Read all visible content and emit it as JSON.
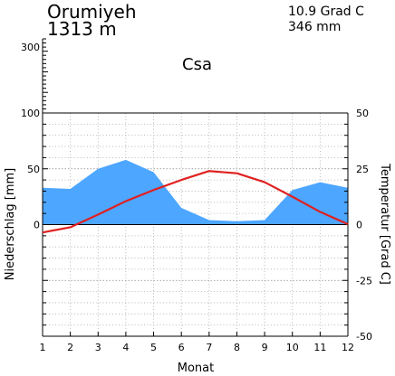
{
  "header": {
    "station": "Orumiyeh",
    "elevation": "1313 m",
    "mean_temperature": "10.9 Grad C",
    "annual_precipitation": "346 mm",
    "climate_class": "Csa"
  },
  "chart_data": {
    "type": "area",
    "title": "",
    "xlabel": "Monat",
    "ylabel_left": "Niederschlag [mm]",
    "ylabel_right": "Temperatur [Grad C]",
    "categories": [
      "1",
      "2",
      "3",
      "4",
      "5",
      "6",
      "7",
      "8",
      "9",
      "10",
      "11",
      "12"
    ],
    "left_ticks": [
      "0",
      "50",
      "100",
      "300"
    ],
    "right_ticks": [
      "50",
      "25",
      "0",
      "-25",
      "-50"
    ],
    "xlim": [
      1,
      12
    ],
    "left_ylim": [
      -100,
      100
    ],
    "right_ylim": [
      -50,
      50
    ],
    "grid": true,
    "series": [
      {
        "kind": "precipitation",
        "unit": "mm",
        "color": "#4da6ff",
        "values": [
          33,
          32,
          50,
          58,
          47,
          15,
          4,
          3,
          4,
          31,
          38,
          33
        ]
      },
      {
        "kind": "temperature",
        "unit": "Grad C",
        "color": "#e02020",
        "values": [
          -3.5,
          -1.2,
          4.5,
          10.5,
          15.5,
          20,
          24,
          23,
          19,
          12.5,
          5.7,
          0.2
        ]
      }
    ]
  }
}
